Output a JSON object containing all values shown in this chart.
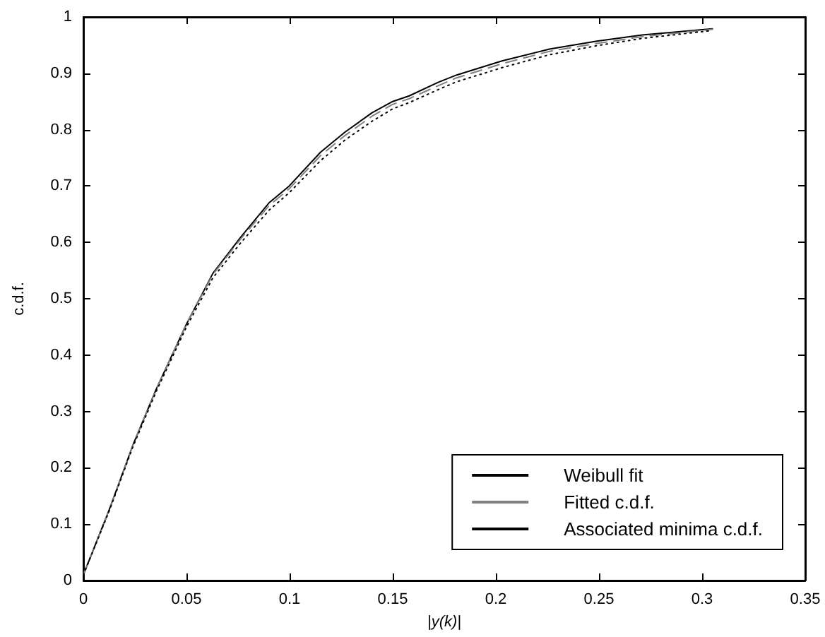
{
  "chart_data": {
    "type": "line",
    "xlabel": "|y(k)|",
    "ylabel": "c.d.f.",
    "marker": "none",
    "grid": false,
    "legend": "bottom right",
    "xlim": [
      0,
      0.35
    ],
    "xticks": [
      0,
      0.05,
      0.1,
      0.15,
      0.2,
      0.25,
      0.3,
      0.35
    ],
    "ylim": [
      0,
      1
    ],
    "yticks": [
      0,
      0.1,
      0.2,
      0.3,
      0.4,
      0.5,
      0.6,
      0.7,
      0.8,
      0.9,
      1
    ],
    "x": [
      0,
      0.0126,
      0.024,
      0.0354,
      0.05,
      0.0628,
      0.0765,
      0.09,
      0.0998,
      0.115,
      0.127,
      0.14,
      0.15,
      0.158,
      0.172,
      0.181,
      0.203,
      0.226,
      0.249,
      0.271,
      0.305
    ],
    "series": [
      {
        "name": "Weibull fit",
        "color": "#000000",
        "line_style": "solid",
        "values": [
          0.01,
          0.126,
          0.24,
          0.34,
          0.455,
          0.545,
          0.61,
          0.67,
          0.7,
          0.76,
          0.796,
          0.83,
          0.85,
          0.86,
          0.884,
          0.897,
          0.922,
          0.943,
          0.957,
          0.968,
          0.979
        ]
      },
      {
        "name": "Fitted c.d.f.",
        "color": "#808080",
        "line_style": "dashed",
        "values": [
          0.01,
          0.126,
          0.24,
          0.34,
          0.455,
          0.543,
          0.607,
          0.665,
          0.695,
          0.754,
          0.79,
          0.824,
          0.845,
          0.855,
          0.878,
          0.892,
          0.917,
          0.939,
          0.953,
          0.965,
          0.978
        ]
      },
      {
        "name": "Associated minima c.d.f.",
        "color": "#000000",
        "line_style": "dotted",
        "values": [
          0.01,
          0.124,
          0.237,
          0.336,
          0.45,
          0.537,
          0.6,
          0.657,
          0.688,
          0.745,
          0.782,
          0.815,
          0.837,
          0.848,
          0.871,
          0.885,
          0.91,
          0.933,
          0.949,
          0.962,
          0.976
        ]
      }
    ]
  }
}
